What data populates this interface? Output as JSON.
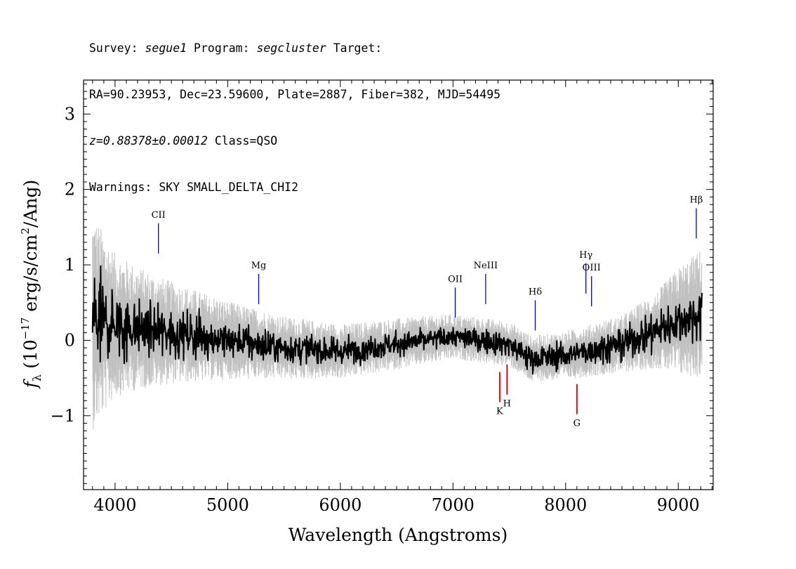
{
  "header": {
    "survey_label": "Survey: ",
    "survey_value": "segue1",
    "program_label": " Program: ",
    "program_value": "segcluster",
    "target_label": " Target:",
    "line2": "RA=90.23953, Dec=23.59600, Plate=2887, Fiber=382, MJD=54495",
    "redshift": "z=0.88378±0.00012",
    "class_text": " Class=QSO",
    "warnings": "Warnings: SKY SMALL_DELTA_CHI2"
  },
  "chart_data": {
    "type": "line",
    "xlabel": "Wavelength (Angstroms)",
    "ylabel": {
      "symbol": "f",
      "subscript": "λ",
      "open": " (10",
      "exponent": "−17",
      "units": " erg/s/cm",
      "units_exp": "2",
      "units_tail": "/Ang)"
    },
    "xlim": [
      3720,
      9310
    ],
    "ylim": [
      -1.98,
      3.45
    ],
    "x_ticks": [
      4000,
      5000,
      6000,
      7000,
      8000,
      9000
    ],
    "x_tick_labels": [
      "4000",
      "5000",
      "6000",
      "7000",
      "8000",
      "9000"
    ],
    "y_ticks": [
      3,
      2,
      1,
      0,
      -1
    ],
    "y_tick_labels": [
      "3",
      "2",
      "1",
      "0",
      "−1"
    ],
    "series": [
      {
        "role": "error",
        "color": "#c0c0c0",
        "envelope_x": [
          3800,
          3900,
          4000,
          4200,
          4400,
          4600,
          5000,
          5500,
          6000,
          6500,
          7000,
          7500,
          8000,
          8500,
          8800,
          9000,
          9200
        ],
        "envelope_halfwidth": [
          1.45,
          1.2,
          0.95,
          0.82,
          0.72,
          0.65,
          0.52,
          0.42,
          0.36,
          0.34,
          0.3,
          0.3,
          0.32,
          0.38,
          0.5,
          0.72,
          0.85
        ]
      },
      {
        "role": "flux",
        "color": "#000000",
        "continuum_x": [
          3800,
          4000,
          4500,
          5000,
          5500,
          6000,
          6500,
          7000,
          7500,
          7700,
          8000,
          8500,
          9000,
          9200
        ],
        "continuum_y": [
          0.25,
          0.2,
          0.1,
          0.0,
          -0.1,
          -0.15,
          -0.05,
          0.05,
          -0.05,
          -0.25,
          -0.2,
          -0.05,
          0.25,
          0.35
        ],
        "noise_x": [
          3800,
          3900,
          4000,
          4500,
          5000,
          6000,
          7000,
          7600,
          8000,
          8600,
          9000,
          9200
        ],
        "noise_sigma": [
          0.7,
          0.5,
          0.4,
          0.28,
          0.22,
          0.16,
          0.12,
          0.16,
          0.15,
          0.2,
          0.28,
          0.3
        ]
      }
    ],
    "emission_lines": [
      {
        "name": "CII",
        "x": 4385,
        "ymin": 1.15,
        "ymax": 1.55,
        "color": "#0000cc"
      },
      {
        "name": "Mg",
        "x": 5275,
        "ymin": 0.48,
        "ymax": 0.88,
        "color": "#0000cc"
      },
      {
        "name": "OII",
        "x": 7020,
        "ymin": 0.3,
        "ymax": 0.7,
        "color": "#0000cc"
      },
      {
        "name": "NeIII",
        "x": 7290,
        "ymin": 0.48,
        "ymax": 0.88,
        "color": "#0000cc"
      },
      {
        "name": "Hδ",
        "x": 7730,
        "ymin": 0.13,
        "ymax": 0.53,
        "color": "#0000cc"
      },
      {
        "name": "Hγ",
        "x": 8180,
        "ymin": 0.62,
        "ymax": 1.02,
        "color": "#0000cc"
      },
      {
        "name": "OIII",
        "x": 8230,
        "ymin": 0.45,
        "ymax": 0.85,
        "color": "#0000cc"
      },
      {
        "name": "Hβ",
        "x": 9160,
        "ymin": 1.35,
        "ymax": 1.75,
        "color": "#0000cc"
      }
    ],
    "absorption_lines": [
      {
        "name": "K",
        "x": 7415,
        "ymin": -0.82,
        "ymax": -0.42,
        "color": "#ff0000"
      },
      {
        "name": "H",
        "x": 7480,
        "ymin": -0.72,
        "ymax": -0.32,
        "color": "#ff0000"
      },
      {
        "name": "G",
        "x": 8100,
        "ymin": -0.98,
        "ymax": -0.58,
        "color": "#ff0000"
      }
    ]
  }
}
